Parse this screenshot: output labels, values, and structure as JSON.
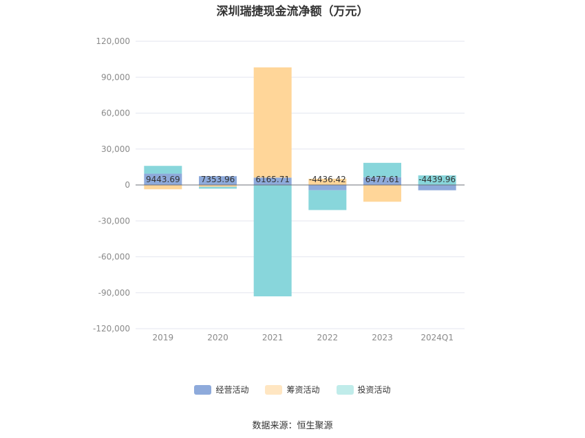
{
  "chart_data": {
    "type": "bar",
    "stacked": true,
    "title": "深圳瑞捷现金流净额（万元）",
    "categories": [
      "2019",
      "2020",
      "2021",
      "2022",
      "2023",
      "2024Q1"
    ],
    "series": [
      {
        "name": "经营活动",
        "color": "#8eaadb",
        "values": [
          9443.69,
          7353.96,
          6165.71,
          -4436.42,
          6477.61,
          -4439.96
        ]
      },
      {
        "name": "筹资活动",
        "color": "#ffd699",
        "values": [
          -3600,
          -1500,
          92000,
          5200,
          -14000,
          0
        ]
      },
      {
        "name": "投资活动",
        "color": "#88d6db",
        "values": [
          6500,
          -1600,
          -93000,
          -16500,
          12000,
          8000
        ]
      }
    ],
    "data_labels": [
      "9443.69",
      "7353.96",
      "6165.71",
      "-4436.42",
      "6477.61",
      "-4439.96"
    ],
    "ylim": [
      -120000,
      120000
    ],
    "yticks": [
      120000,
      90000,
      60000,
      30000,
      0,
      -30000,
      -60000,
      -90000,
      -120000
    ],
    "ytick_labels": [
      "120,000",
      "90,000",
      "60,000",
      "30,000",
      "0",
      "-30,000",
      "-60,000",
      "-90,000",
      "-120,000"
    ],
    "grid": true,
    "legend_position": "bottom"
  },
  "legend": {
    "items": [
      {
        "label": "经营活动",
        "color": "#8eaadb"
      },
      {
        "label": "筹资活动",
        "color": "#ffe6c2"
      },
      {
        "label": "投资活动",
        "color": "#c0ecea"
      }
    ]
  },
  "source": "数据来源：恒生聚源"
}
